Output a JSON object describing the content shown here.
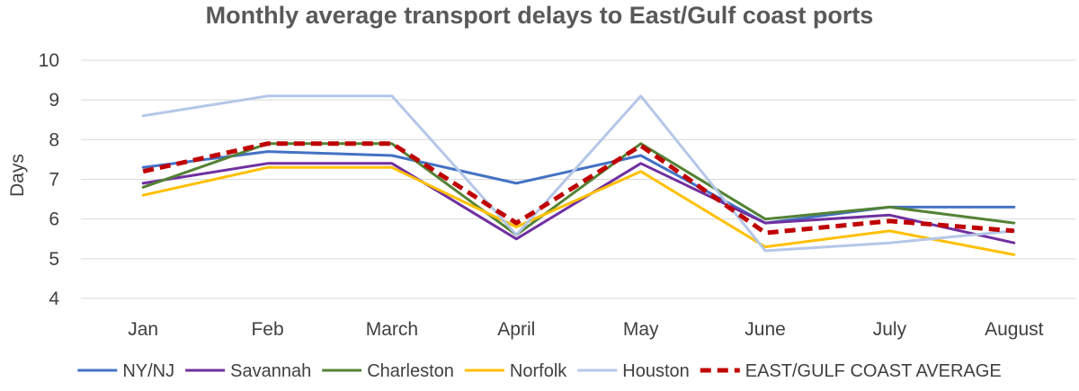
{
  "chart_data": {
    "type": "line",
    "title": "Monthly average transport delays to East/Gulf coast ports",
    "xlabel": "",
    "ylabel": "Days",
    "categories": [
      "Jan",
      "Feb",
      "March",
      "April",
      "May",
      "June",
      "July",
      "August"
    ],
    "ylim": [
      4,
      10
    ],
    "yticks": [
      4,
      5,
      6,
      7,
      8,
      9,
      10
    ],
    "grid": true,
    "legend_position": "bottom",
    "series": [
      {
        "name": "NY/NJ",
        "color": "#4472C4",
        "dash": false,
        "values": [
          7.3,
          7.7,
          7.6,
          6.9,
          7.6,
          5.9,
          6.3,
          6.3
        ]
      },
      {
        "name": "Savannah",
        "color": "#7030A0",
        "dash": false,
        "values": [
          6.9,
          7.4,
          7.4,
          5.5,
          7.4,
          5.9,
          6.1,
          5.4
        ]
      },
      {
        "name": "Charleston",
        "color": "#548235",
        "dash": false,
        "values": [
          6.8,
          7.9,
          7.9,
          5.6,
          7.9,
          6.0,
          6.3,
          5.9
        ]
      },
      {
        "name": "Norfolk",
        "color": "#FFC000",
        "dash": false,
        "values": [
          6.6,
          7.3,
          7.3,
          5.8,
          7.2,
          5.3,
          5.7,
          5.1
        ]
      },
      {
        "name": "Houston",
        "color": "#B4C7E7",
        "dash": false,
        "values": [
          8.6,
          9.1,
          9.1,
          5.6,
          9.1,
          5.2,
          5.4,
          5.7
        ]
      },
      {
        "name": "EAST/GULF COAST AVERAGE",
        "color": "#C00000",
        "dash": true,
        "values": [
          7.2,
          7.9,
          7.9,
          5.9,
          7.85,
          5.65,
          5.95,
          5.7
        ]
      }
    ]
  }
}
